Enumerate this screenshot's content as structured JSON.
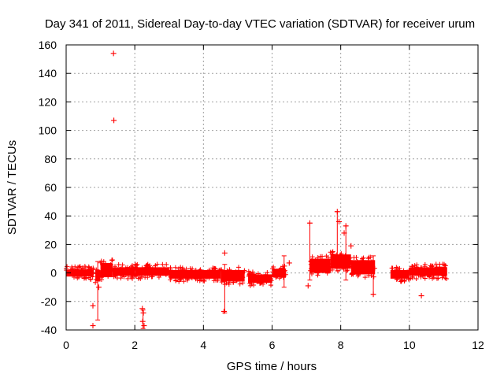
{
  "chart_data": {
    "type": "scatter",
    "title": "Day 341 of 2011, Sidereal Day-to-day VTEC variation (SDTVAR) for receiver urum",
    "xlabel": "GPS time / hours",
    "ylabel": "SDTVAR / TECUs",
    "xlim": [
      0,
      12
    ],
    "ylim": [
      -40,
      160
    ],
    "xticks": [
      0,
      2,
      4,
      6,
      8,
      10,
      12
    ],
    "yticks": [
      -40,
      -20,
      0,
      20,
      40,
      60,
      80,
      100,
      120,
      140,
      160
    ],
    "grid": true,
    "marker": "+",
    "color": "#ff0000",
    "bands": [
      {
        "x0": 0.0,
        "x1": 0.8,
        "center": 0,
        "half": 2.5
      },
      {
        "x0": 0.85,
        "x1": 1.0,
        "center": -2,
        "half": 4
      },
      {
        "x0": 1.0,
        "x1": 1.35,
        "center": 2,
        "half": 5
      },
      {
        "x0": 1.35,
        "x1": 2.0,
        "center": 1,
        "half": 3
      },
      {
        "x0": 2.0,
        "x1": 3.0,
        "center": 1,
        "half": 3
      },
      {
        "x0": 3.0,
        "x1": 4.5,
        "center": -1,
        "half": 3
      },
      {
        "x0": 4.5,
        "x1": 5.2,
        "center": -2,
        "half": 4
      },
      {
        "x0": 5.3,
        "x1": 6.0,
        "center": -4,
        "half": 3
      },
      {
        "x0": 6.0,
        "x1": 6.4,
        "center": 0,
        "half": 3
      },
      {
        "x0": 7.1,
        "x1": 7.7,
        "center": 5,
        "half": 5
      },
      {
        "x0": 7.7,
        "x1": 8.3,
        "center": 8,
        "half": 5
      },
      {
        "x0": 8.3,
        "x1": 9.0,
        "center": 4,
        "half": 5
      },
      {
        "x0": 9.45,
        "x1": 10.0,
        "center": -1,
        "half": 3
      },
      {
        "x0": 10.0,
        "x1": 11.1,
        "center": 1,
        "half": 3
      }
    ],
    "outliers": [
      {
        "x": 1.38,
        "y": 154
      },
      {
        "x": 1.39,
        "y": 107
      },
      {
        "x": 0.78,
        "y": -23
      },
      {
        "x": 0.78,
        "y": -37
      },
      {
        "x": 0.95,
        "y": -10
      },
      {
        "x": 2.22,
        "y": -25
      },
      {
        "x": 2.25,
        "y": -28
      },
      {
        "x": 2.23,
        "y": -34
      },
      {
        "x": 2.27,
        "y": -37
      },
      {
        "x": 4.62,
        "y": 14
      },
      {
        "x": 4.6,
        "y": -27
      },
      {
        "x": 6.5,
        "y": 7
      },
      {
        "x": 7.1,
        "y": 35
      },
      {
        "x": 7.05,
        "y": -9
      },
      {
        "x": 7.9,
        "y": 43
      },
      {
        "x": 7.95,
        "y": 36
      },
      {
        "x": 8.15,
        "y": 33
      },
      {
        "x": 8.1,
        "y": 28
      },
      {
        "x": 8.3,
        "y": 19
      },
      {
        "x": 8.95,
        "y": -15
      },
      {
        "x": 10.35,
        "y": -16
      }
    ],
    "errorbars": [
      {
        "x": 0.92,
        "lo": -33,
        "hi": 8
      },
      {
        "x": 2.24,
        "lo": -39,
        "hi": -26
      },
      {
        "x": 4.62,
        "lo": -28,
        "hi": 6
      },
      {
        "x": 6.35,
        "lo": -10,
        "hi": 12
      },
      {
        "x": 7.1,
        "lo": -5,
        "hi": 35
      },
      {
        "x": 7.9,
        "lo": 10,
        "hi": 43
      },
      {
        "x": 8.15,
        "lo": -5,
        "hi": 33
      },
      {
        "x": 8.95,
        "lo": -15,
        "hi": 12
      }
    ]
  }
}
